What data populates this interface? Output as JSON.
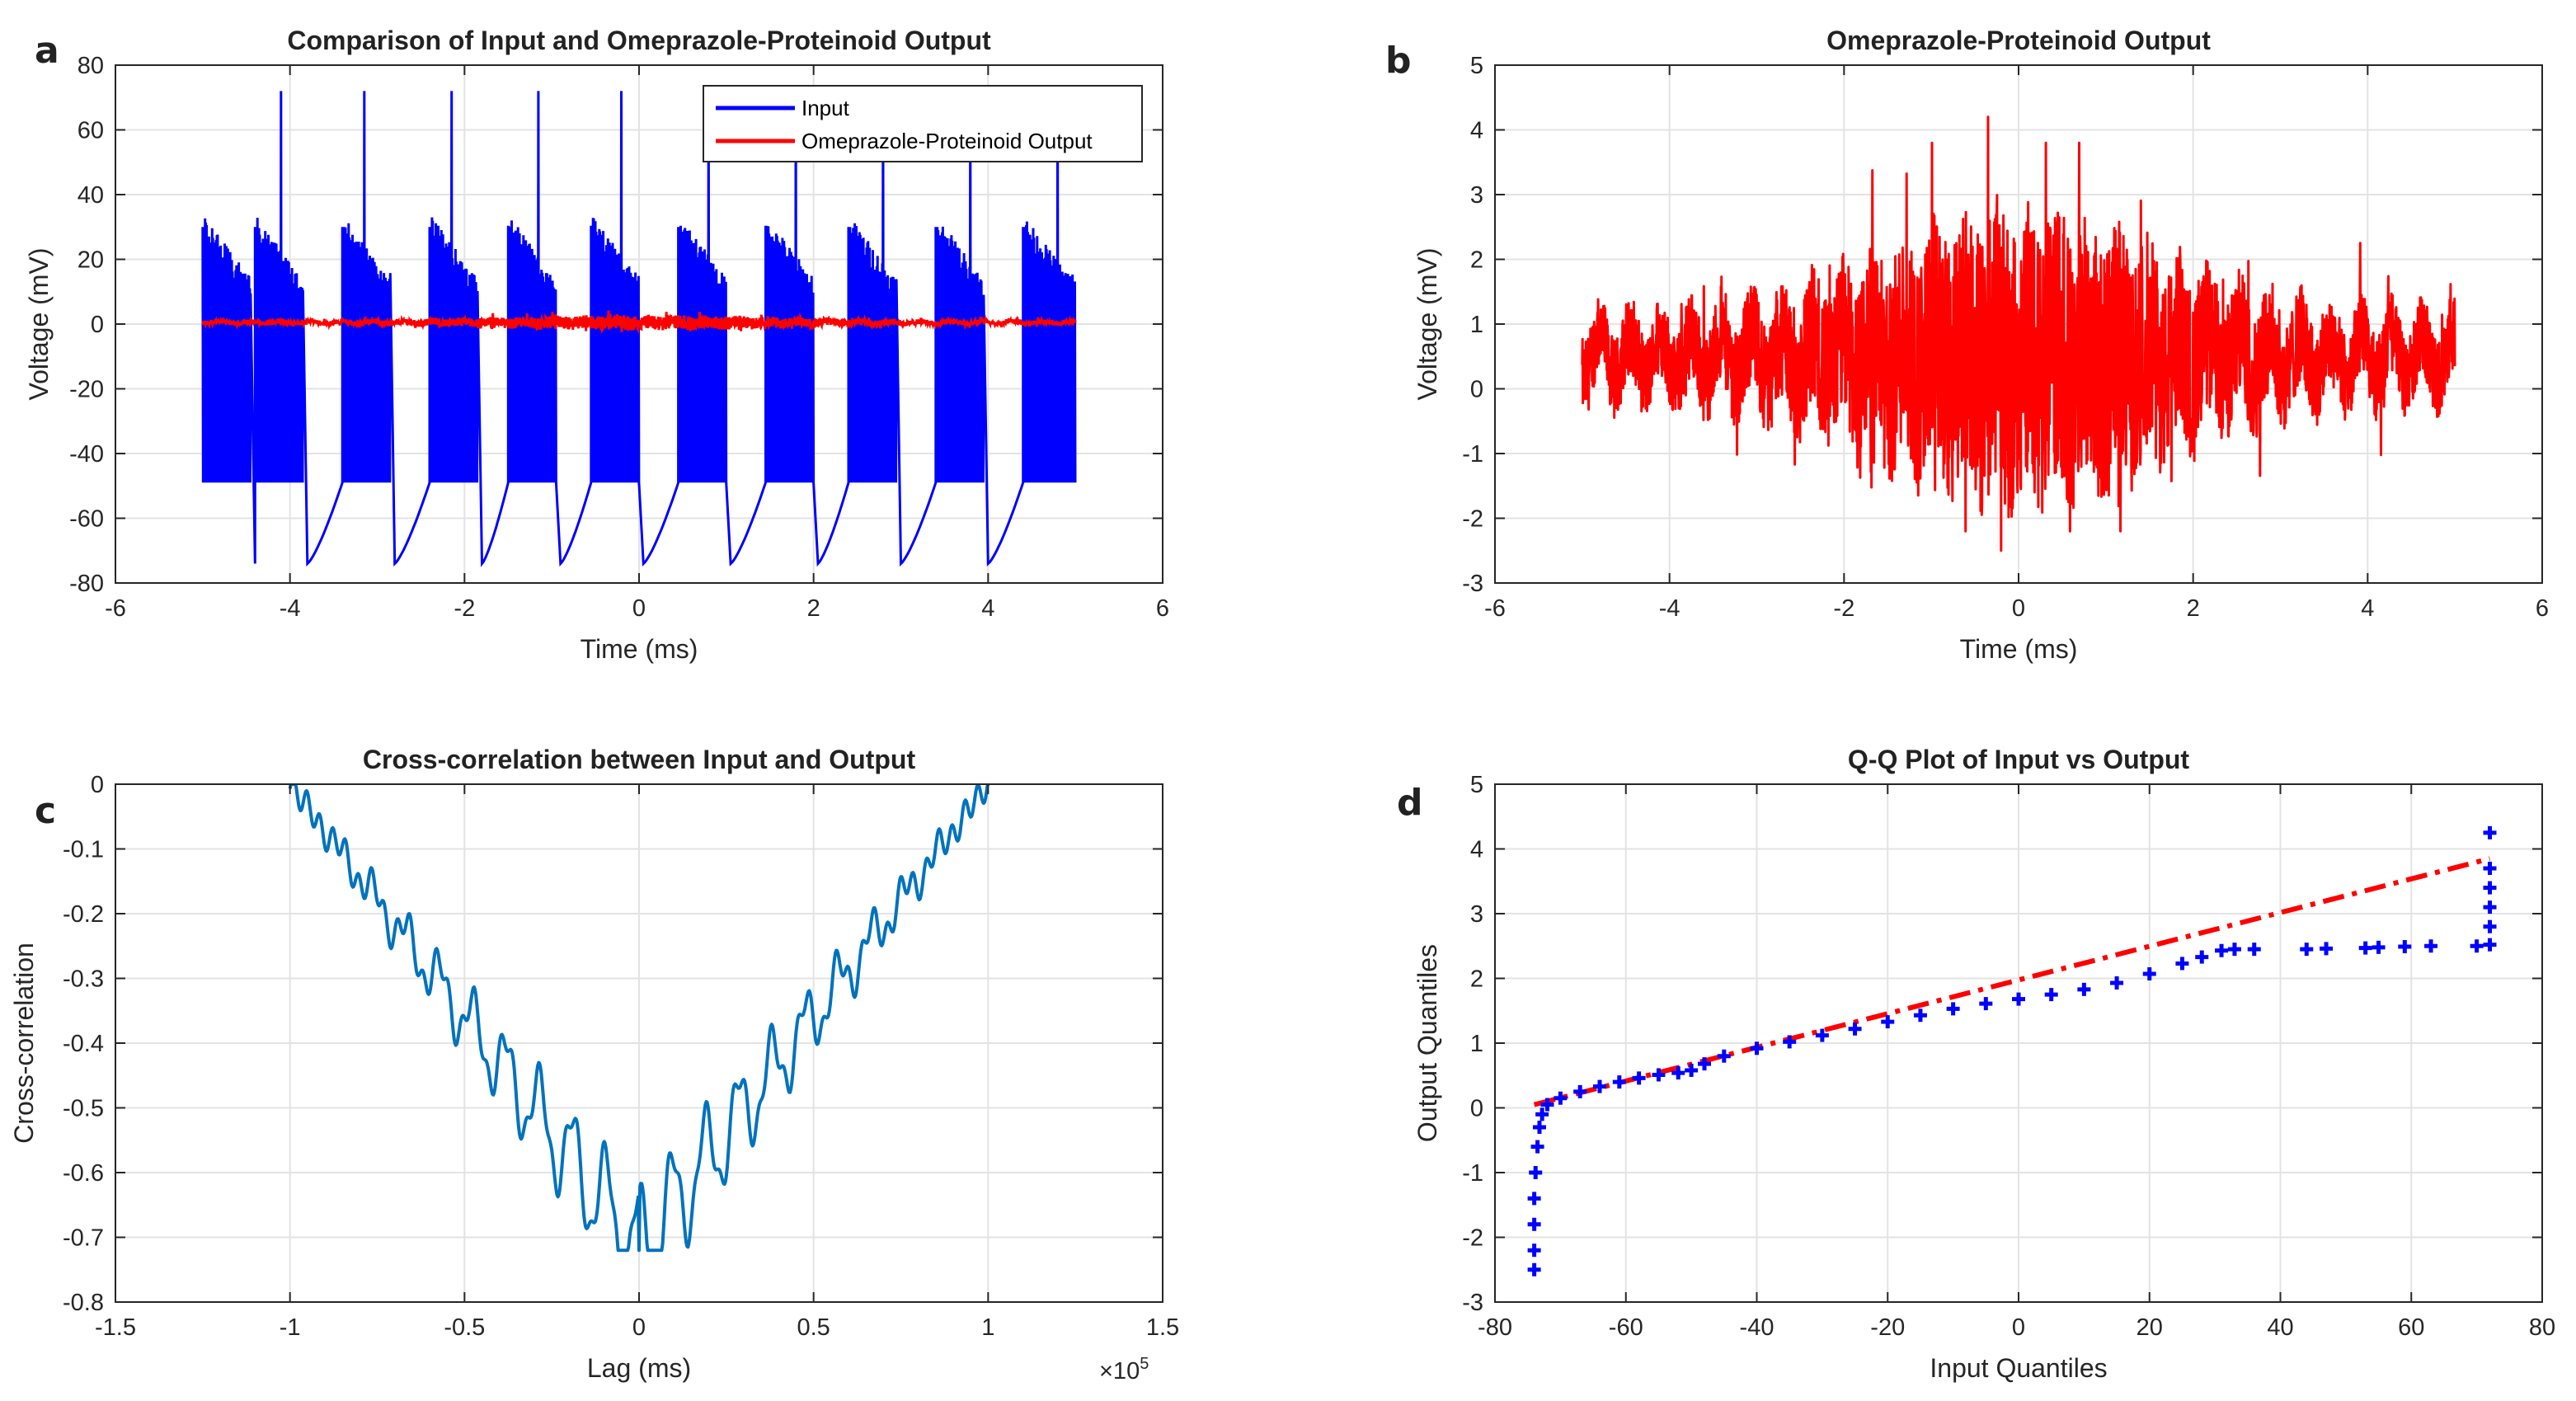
{
  "chart_data": [
    {
      "panel": "a",
      "type": "line",
      "title": "Comparison of Input and Omeprazole-Proteinoid Output",
      "xlabel": "Time (ms)",
      "ylabel": "Voltage (mV)",
      "xlim": [
        -6,
        6
      ],
      "ylim": [
        -80,
        80
      ],
      "xticks": [
        -6,
        -4,
        -2,
        0,
        2,
        4,
        6
      ],
      "yticks": [
        -80,
        -60,
        -40,
        -20,
        0,
        20,
        40,
        60,
        80
      ],
      "grid": true,
      "legend": "top-right",
      "series": [
        {
          "name": "Input",
          "color": "#0000ff",
          "burst_starts_ms": [
            -5.0,
            -4.4,
            -3.4,
            -2.4,
            -1.5,
            -0.55,
            0.45,
            1.45,
            2.4,
            3.4,
            4.4
          ],
          "spike_peaks_ms": [
            -4.1,
            -3.15,
            -2.15,
            -1.15,
            -0.2,
            0.8,
            1.8,
            2.8,
            3.8,
            4.8
          ],
          "spike_peak_mV": 72,
          "burst_peak_mV": 30,
          "plateau_mV": -49,
          "trough_mV": -74
        },
        {
          "name": "Omeprazole-Proteinoid Output",
          "color": "#ff0000",
          "approx_range_mV": [
            -2.5,
            4.2
          ]
        }
      ]
    },
    {
      "panel": "b",
      "type": "line",
      "title": "Omeprazole-Proteinoid Output",
      "xlabel": "Time (ms)",
      "ylabel": "Voltage (mV)",
      "xlim": [
        -6,
        6
      ],
      "ylim": [
        -3,
        5
      ],
      "xticks": [
        -6,
        -4,
        -2,
        0,
        2,
        4,
        6
      ],
      "yticks": [
        -3,
        -2,
        -1,
        0,
        1,
        2,
        3,
        4,
        5
      ],
      "grid": true,
      "series": [
        {
          "color": "#ff0000",
          "x_range": [
            -5,
            5
          ],
          "center_mV": 0.5,
          "max_mV": 4.2,
          "max_at_ms": -0.35,
          "min_mV": -2.5,
          "min_at_ms": -0.2
        }
      ]
    },
    {
      "panel": "c",
      "type": "line",
      "title": "Cross-correlation between Input and Output",
      "xlabel": "Lag (ms)",
      "ylabel": "Cross-correlation",
      "x_multiplier": "×10^5",
      "xlim": [
        -1.5,
        1.5
      ],
      "ylim": [
        -0.8,
        0
      ],
      "xticks": [
        -1.5,
        -1,
        -0.5,
        0,
        0.5,
        1,
        1.5
      ],
      "yticks": [
        -0.8,
        -0.7,
        -0.6,
        -0.5,
        -0.4,
        -0.3,
        -0.2,
        -0.1,
        0
      ],
      "grid": true,
      "series": [
        {
          "color": "#0072bd",
          "x_range": [
            -1,
            1
          ],
          "value_at_ends": 0,
          "min_value": -0.72,
          "min_at": 0
        }
      ]
    },
    {
      "panel": "d",
      "type": "scatter",
      "title": "Q-Q Plot of Input vs Output",
      "xlabel": "Input Quantiles",
      "ylabel": "Output Quantiles",
      "xlim": [
        -80,
        80
      ],
      "ylim": [
        -3,
        5
      ],
      "xticks": [
        -80,
        -60,
        -40,
        -20,
        0,
        20,
        40,
        60,
        80
      ],
      "yticks": [
        -3,
        -2,
        -1,
        0,
        1,
        2,
        3,
        4,
        5
      ],
      "grid": true,
      "series": [
        {
          "color": "#0000ff",
          "marker": "+",
          "points": [
            [
              -74,
              -2.5
            ],
            [
              -74,
              -2.2
            ],
            [
              -74,
              -1.8
            ],
            [
              -74,
              -1.4
            ],
            [
              -73.8,
              -1.0
            ],
            [
              -73.5,
              -0.6
            ],
            [
              -73.2,
              -0.3
            ],
            [
              -72.8,
              -0.1
            ],
            [
              -72,
              0.05
            ],
            [
              -70,
              0.15
            ],
            [
              -67,
              0.25
            ],
            [
              -64,
              0.33
            ],
            [
              -61,
              0.4
            ],
            [
              -58,
              0.46
            ],
            [
              -55,
              0.51
            ],
            [
              -52,
              0.54
            ],
            [
              -50,
              0.58
            ],
            [
              -48,
              0.68
            ],
            [
              -45,
              0.8
            ],
            [
              -40,
              0.92
            ],
            [
              -35,
              1.02
            ],
            [
              -30,
              1.12
            ],
            [
              -25,
              1.22
            ],
            [
              -20,
              1.33
            ],
            [
              -15,
              1.43
            ],
            [
              -10,
              1.53
            ],
            [
              -5,
              1.61
            ],
            [
              0,
              1.68
            ],
            [
              5,
              1.75
            ],
            [
              10,
              1.83
            ],
            [
              15,
              1.93
            ],
            [
              20,
              2.07
            ],
            [
              25,
              2.23
            ],
            [
              28,
              2.33
            ],
            [
              31,
              2.43
            ],
            [
              33,
              2.45
            ],
            [
              36,
              2.45
            ],
            [
              44,
              2.45
            ],
            [
              47,
              2.46
            ],
            [
              53,
              2.47
            ],
            [
              55,
              2.48
            ],
            [
              59,
              2.49
            ],
            [
              63,
              2.5
            ],
            [
              70,
              2.5
            ],
            [
              72,
              2.52
            ],
            [
              72,
              2.8
            ],
            [
              72,
              3.1
            ],
            [
              72,
              3.4
            ],
            [
              72,
              3.7
            ],
            [
              72,
              4.25
            ]
          ]
        },
        {
          "color": "#ff0000",
          "style": "dash-dot",
          "points": [
            [
              -74,
              0.05
            ],
            [
              72,
              3.85
            ]
          ]
        }
      ]
    }
  ]
}
